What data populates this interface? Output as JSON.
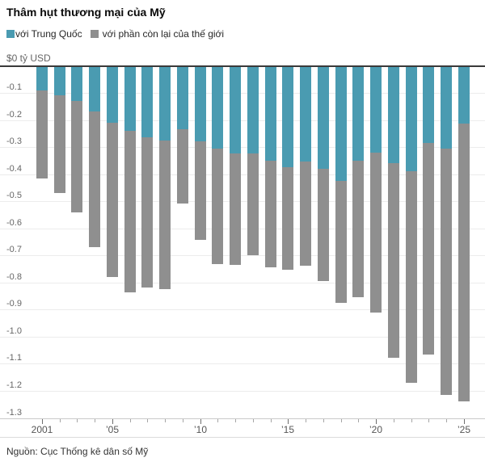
{
  "header": {
    "title": "Thâm hụt thương mại của Mỹ"
  },
  "legend": {
    "items": [
      {
        "label": "với Trung Quốc",
        "color": "#4a9bb1"
      },
      {
        "label": "với phần còn lại của thế giới",
        "color": "#8f8f8f"
      }
    ]
  },
  "footer": {
    "source": "Nguồn: Cục Thống kê dân số Mỹ"
  },
  "chart_data": {
    "type": "bar",
    "stacked": true,
    "orientation": "vertical",
    "title": "Thâm hụt thương mại của Mỹ",
    "zero_label": "$0 tỷ USD",
    "ylim": [
      -1.3,
      0
    ],
    "y_tick_step": 0.1,
    "grid": true,
    "legend_position": "top-left",
    "years": [
      2001,
      2002,
      2003,
      2004,
      2005,
      2006,
      2007,
      2008,
      2009,
      2010,
      2011,
      2012,
      2013,
      2014,
      2015,
      2016,
      2017,
      2018,
      2019,
      2020,
      2021,
      2022,
      2023,
      2024,
      2025
    ],
    "series": [
      {
        "name": "với Trung Quốc",
        "color": "#4a9bb1",
        "values": [
          -0.085,
          -0.105,
          -0.125,
          -0.165,
          -0.205,
          -0.235,
          -0.26,
          -0.27,
          -0.23,
          -0.275,
          -0.3,
          -0.32,
          -0.32,
          -0.345,
          -0.37,
          -0.35,
          -0.375,
          -0.42,
          -0.345,
          -0.315,
          -0.355,
          -0.385,
          -0.28,
          -0.3,
          -0.21
        ]
      },
      {
        "name": "với phần còn lại của thế giới",
        "color": "#8f8f8f",
        "values": [
          -0.325,
          -0.36,
          -0.41,
          -0.5,
          -0.57,
          -0.595,
          -0.555,
          -0.55,
          -0.275,
          -0.365,
          -0.425,
          -0.41,
          -0.375,
          -0.395,
          -0.38,
          -0.385,
          -0.415,
          -0.45,
          -0.505,
          -0.59,
          -0.72,
          -0.78,
          -0.78,
          -0.91,
          -1.025
        ]
      }
    ],
    "y_ticks": [
      "-0.1",
      "-0.2",
      "-0.3",
      "-0.4",
      "-0.5",
      "-0.6",
      "-0.7",
      "-0.8",
      "-0.9",
      "-1.0",
      "-1.1",
      "-1.2",
      "-1.3"
    ],
    "x_ticks": [
      {
        "label": "2001",
        "index": 0
      },
      {
        "label": "’05",
        "index": 4
      },
      {
        "label": "’10",
        "index": 9
      },
      {
        "label": "’15",
        "index": 14
      },
      {
        "label": "’20",
        "index": 19
      },
      {
        "label": "’25",
        "index": 24
      }
    ]
  }
}
